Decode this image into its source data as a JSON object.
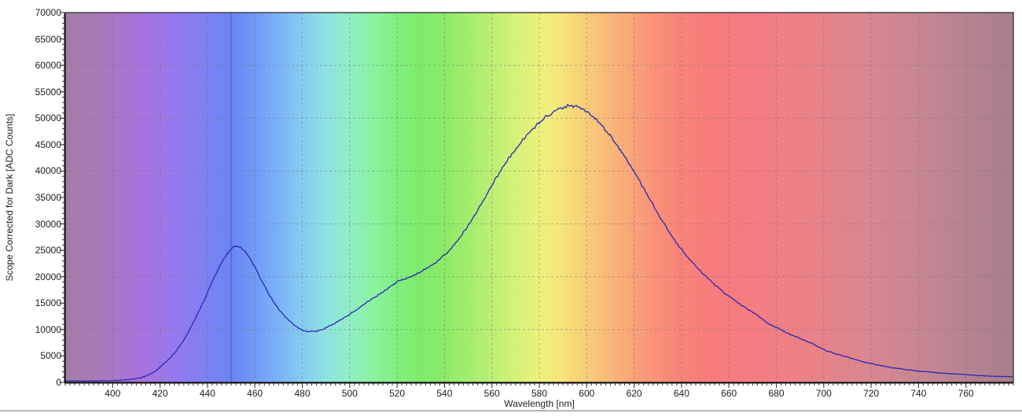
{
  "chart_data": {
    "type": "line",
    "title": "",
    "xlabel": "Wavelength [nm]",
    "ylabel": "Scope Corrected for Dark [ADC Counts]",
    "xlim": [
      380,
      780
    ],
    "ylim": [
      0,
      70000
    ],
    "x_tick_labels": [
      400,
      420,
      440,
      460,
      480,
      500,
      520,
      540,
      560,
      580,
      600,
      620,
      640,
      660,
      680,
      700,
      720,
      740,
      760
    ],
    "x_minor_tick_step": 2,
    "y_tick_labels": [
      0,
      5000,
      10000,
      15000,
      20000,
      25000,
      30000,
      35000,
      40000,
      45000,
      50000,
      55000,
      60000,
      65000,
      70000
    ],
    "y_minor_tick_step": 1000,
    "grid": {
      "style": "dashed",
      "x_step": 20,
      "y_step": 10000,
      "color": "#6b6b6b"
    },
    "legend": "none",
    "marker_line": {
      "x": 450,
      "color": "#5563b8"
    },
    "series": [
      {
        "name": "Scope Corrected for Dark",
        "color": "#2828b4",
        "points": [
          [
            380,
            260
          ],
          [
            385,
            260
          ],
          [
            390,
            280
          ],
          [
            395,
            300
          ],
          [
            400,
            340
          ],
          [
            403,
            400
          ],
          [
            406,
            500
          ],
          [
            409,
            650
          ],
          [
            412,
            900
          ],
          [
            415,
            1400
          ],
          [
            418,
            2100
          ],
          [
            420,
            2900
          ],
          [
            422,
            3700
          ],
          [
            424,
            4500
          ],
          [
            426,
            5500
          ],
          [
            428,
            6700
          ],
          [
            430,
            8000
          ],
          [
            432,
            9600
          ],
          [
            434,
            11300
          ],
          [
            436,
            13100
          ],
          [
            438,
            15000
          ],
          [
            440,
            17000
          ],
          [
            442,
            19100
          ],
          [
            444,
            21000
          ],
          [
            446,
            22700
          ],
          [
            448,
            24100
          ],
          [
            450,
            25200
          ],
          [
            452,
            25800
          ],
          [
            454,
            25500
          ],
          [
            456,
            24700
          ],
          [
            458,
            23400
          ],
          [
            460,
            21800
          ],
          [
            462,
            20000
          ],
          [
            464,
            18300
          ],
          [
            466,
            16700
          ],
          [
            468,
            15200
          ],
          [
            470,
            13900
          ],
          [
            472,
            12800
          ],
          [
            474,
            11900
          ],
          [
            476,
            11100
          ],
          [
            478,
            10400
          ],
          [
            480,
            9900
          ],
          [
            482,
            9650
          ],
          [
            484,
            9600
          ],
          [
            486,
            9700
          ],
          [
            488,
            9950
          ],
          [
            490,
            10350
          ],
          [
            493,
            11000
          ],
          [
            496,
            11800
          ],
          [
            500,
            12900
          ],
          [
            504,
            14100
          ],
          [
            508,
            15400
          ],
          [
            512,
            16500
          ],
          [
            516,
            17700
          ],
          [
            520,
            19000
          ],
          [
            523,
            19600
          ],
          [
            526,
            20100
          ],
          [
            529,
            20700
          ],
          [
            532,
            21400
          ],
          [
            535,
            22300
          ],
          [
            538,
            23300
          ],
          [
            541,
            24500
          ],
          [
            544,
            26000
          ],
          [
            547,
            27700
          ],
          [
            550,
            29700
          ],
          [
            553,
            31800
          ],
          [
            556,
            34100
          ],
          [
            559,
            36500
          ],
          [
            562,
            38800
          ],
          [
            565,
            41000
          ],
          [
            568,
            43000
          ],
          [
            571,
            44800
          ],
          [
            574,
            46400
          ],
          [
            577,
            47900
          ],
          [
            580,
            49100
          ],
          [
            583,
            50300
          ],
          [
            586,
            51300
          ],
          [
            589,
            52000
          ],
          [
            592,
            52400
          ],
          [
            595,
            52300
          ],
          [
            598,
            51700
          ],
          [
            601,
            50800
          ],
          [
            604,
            49700
          ],
          [
            607,
            48300
          ],
          [
            610,
            46700
          ],
          [
            613,
            44800
          ],
          [
            616,
            42800
          ],
          [
            619,
            40600
          ],
          [
            622,
            38300
          ],
          [
            625,
            35900
          ],
          [
            628,
            33500
          ],
          [
            631,
            31200
          ],
          [
            634,
            29000
          ],
          [
            637,
            27000
          ],
          [
            640,
            25200
          ],
          [
            643,
            23500
          ],
          [
            646,
            22000
          ],
          [
            649,
            20600
          ],
          [
            652,
            19300
          ],
          [
            655,
            18100
          ],
          [
            658,
            17000
          ],
          [
            661,
            16000
          ],
          [
            664,
            15000
          ],
          [
            668,
            13800
          ],
          [
            672,
            12700
          ],
          [
            676,
            11300
          ],
          [
            680,
            10400
          ],
          [
            684,
            9500
          ],
          [
            688,
            8700
          ],
          [
            692,
            7900
          ],
          [
            696,
            7200
          ],
          [
            700,
            6200
          ],
          [
            705,
            5450
          ],
          [
            710,
            4800
          ],
          [
            715,
            4100
          ],
          [
            720,
            3550
          ],
          [
            725,
            3100
          ],
          [
            730,
            2700
          ],
          [
            735,
            2400
          ],
          [
            740,
            2150
          ],
          [
            745,
            1950
          ],
          [
            750,
            1750
          ],
          [
            755,
            1600
          ],
          [
            760,
            1450
          ],
          [
            765,
            1320
          ],
          [
            770,
            1200
          ],
          [
            775,
            1100
          ],
          [
            780,
            1050
          ]
        ]
      }
    ],
    "background_spectrum_gradient": [
      {
        "nm": 380,
        "color": "#a57da7"
      },
      {
        "nm": 395,
        "color": "#aa78bb"
      },
      {
        "nm": 410,
        "color": "#a973d9"
      },
      {
        "nm": 425,
        "color": "#9878ee"
      },
      {
        "nm": 440,
        "color": "#7b82f2"
      },
      {
        "nm": 450,
        "color": "#6a84f4"
      },
      {
        "nm": 460,
        "color": "#719af7"
      },
      {
        "nm": 470,
        "color": "#7cb2f8"
      },
      {
        "nm": 480,
        "color": "#86ccf0"
      },
      {
        "nm": 490,
        "color": "#8fe2e2"
      },
      {
        "nm": 500,
        "color": "#92eec4"
      },
      {
        "nm": 510,
        "color": "#8bf2a0"
      },
      {
        "nm": 520,
        "color": "#81ef7f"
      },
      {
        "nm": 530,
        "color": "#7eea6b"
      },
      {
        "nm": 540,
        "color": "#8cea67"
      },
      {
        "nm": 550,
        "color": "#a3ed6e"
      },
      {
        "nm": 560,
        "color": "#bcef74"
      },
      {
        "nm": 570,
        "color": "#d6f179"
      },
      {
        "nm": 580,
        "color": "#ecf17b"
      },
      {
        "nm": 588,
        "color": "#f4e77a"
      },
      {
        "nm": 598,
        "color": "#f7d179"
      },
      {
        "nm": 608,
        "color": "#f8bb79"
      },
      {
        "nm": 618,
        "color": "#f9a679"
      },
      {
        "nm": 628,
        "color": "#f99379"
      },
      {
        "nm": 638,
        "color": "#f88579"
      },
      {
        "nm": 650,
        "color": "#f87c7c"
      },
      {
        "nm": 665,
        "color": "#f67b80"
      },
      {
        "nm": 680,
        "color": "#f17e85"
      },
      {
        "nm": 700,
        "color": "#e68389"
      },
      {
        "nm": 720,
        "color": "#d8868f"
      },
      {
        "nm": 740,
        "color": "#c78793"
      },
      {
        "nm": 760,
        "color": "#b68391"
      },
      {
        "nm": 780,
        "color": "#a87e8c"
      }
    ]
  }
}
